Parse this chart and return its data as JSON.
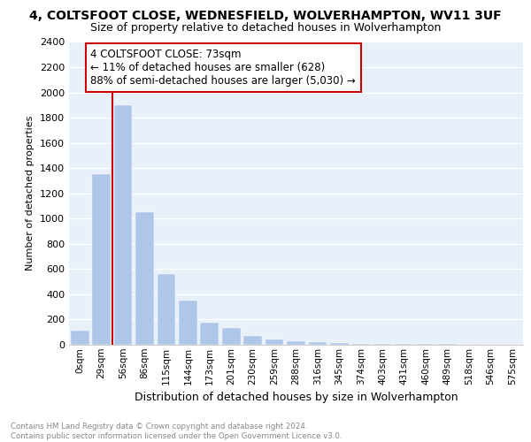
{
  "title": "4, COLTSFOOT CLOSE, WEDNESFIELD, WOLVERHAMPTON, WV11 3UF",
  "subtitle": "Size of property relative to detached houses in Wolverhampton",
  "xlabel": "Distribution of detached houses by size in Wolverhampton",
  "ylabel": "Number of detached properties",
  "annotation_line1": "4 COLTSFOOT CLOSE: 73sqm",
  "annotation_line2": "← 11% of detached houses are smaller (628)",
  "annotation_line3": "88% of semi-detached houses are larger (5,030) →",
  "footer1": "Contains HM Land Registry data © Crown copyright and database right 2024.",
  "footer2": "Contains public sector information licensed under the Open Government Licence v3.0.",
  "bar_labels": [
    "0sqm",
    "29sqm",
    "56sqm",
    "86sqm",
    "115sqm",
    "144sqm",
    "173sqm",
    "201sqm",
    "230sqm",
    "259sqm",
    "288sqm",
    "316sqm",
    "345sqm",
    "374sqm",
    "403sqm",
    "431sqm",
    "460sqm",
    "489sqm",
    "518sqm",
    "546sqm",
    "575sqm"
  ],
  "bar_values": [
    110,
    1350,
    1900,
    1050,
    560,
    350,
    175,
    130,
    70,
    40,
    25,
    18,
    12,
    10,
    8,
    6,
    5,
    4,
    3,
    2,
    1
  ],
  "bar_color": "#aec6e8",
  "ylim": [
    0,
    2400
  ],
  "yticks": [
    0,
    200,
    400,
    600,
    800,
    1000,
    1200,
    1400,
    1600,
    1800,
    2000,
    2200,
    2400
  ],
  "vline_x": 1.5,
  "bg_color": "#e8f0fa",
  "annotation_box_color": "#cc0000",
  "title_fontsize": 10,
  "subtitle_fontsize": 9
}
